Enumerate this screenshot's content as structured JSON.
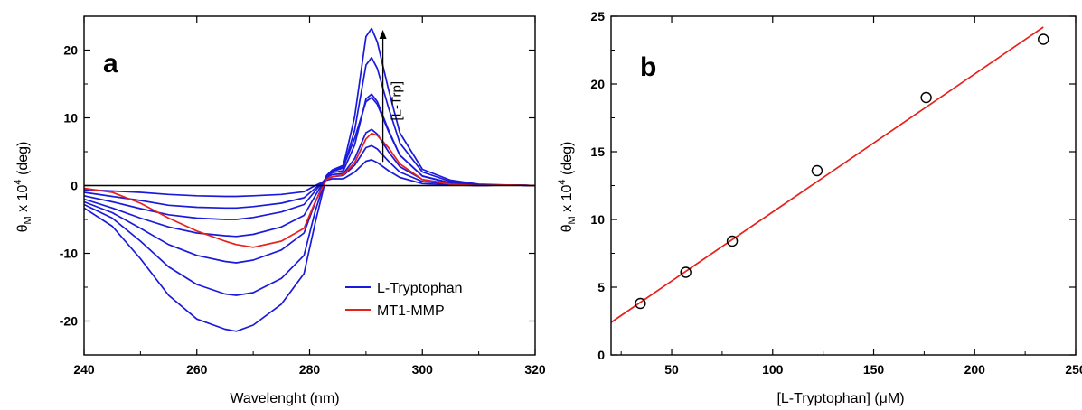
{
  "chart_data": [
    {
      "panel": "a",
      "type": "line",
      "xlabel": "Wavelenght (nm)",
      "ylabel": {
        "symbol": "θ",
        "sub": "M",
        "mid": " x 10",
        "sup": "4",
        "unit": " (deg)"
      },
      "xlim": [
        240,
        320
      ],
      "ylim": [
        -25,
        25
      ],
      "xticks": [
        240,
        260,
        280,
        300,
        320
      ],
      "yticks": [
        -20,
        -10,
        0,
        10,
        20
      ],
      "zero_line": true,
      "annotation": {
        "text": "[L-Trp]",
        "arrow": "up",
        "x": 293,
        "y_from": 3.5,
        "y_to": 23
      },
      "legend": {
        "placement": "bottom-right",
        "entries": [
          {
            "label": "L-Tryptophan",
            "color": "#1a1adb"
          },
          {
            "label": "MT1-MMP",
            "color": "#e8201a"
          }
        ]
      },
      "x": [
        240,
        245,
        250,
        255,
        260,
        265,
        267,
        270,
        275,
        279,
        281,
        283,
        284,
        286,
        288,
        290,
        291,
        292,
        294,
        296,
        300,
        305,
        310,
        315,
        320
      ],
      "series": [
        {
          "color": "#1a1adb",
          "values": [
            -0.6,
            -0.8,
            -1.0,
            -1.3,
            -1.5,
            -1.6,
            -1.6,
            -1.5,
            -1.3,
            -0.9,
            0.0,
            0.8,
            1.0,
            1.0,
            2.0,
            3.6,
            3.8,
            3.4,
            2.2,
            1.2,
            0.3,
            0.1,
            0.0,
            0.1,
            0.0
          ]
        },
        {
          "color": "#1a1adb",
          "values": [
            -1.0,
            -1.6,
            -2.2,
            -2.9,
            -3.2,
            -3.3,
            -3.3,
            -3.1,
            -2.6,
            -1.8,
            -0.4,
            1.0,
            1.3,
            1.5,
            3.0,
            5.6,
            5.9,
            5.4,
            3.6,
            2.0,
            0.6,
            0.2,
            0.0,
            0.1,
            0.0
          ]
        },
        {
          "color": "#1a1adb",
          "values": [
            -1.5,
            -2.4,
            -3.4,
            -4.3,
            -4.8,
            -5.0,
            -5.0,
            -4.7,
            -3.9,
            -2.8,
            -0.8,
            1.2,
            1.6,
            1.8,
            4.0,
            7.8,
            8.3,
            7.6,
            5.0,
            2.8,
            0.9,
            0.3,
            0.0,
            0.1,
            0.0
          ]
        },
        {
          "color": "#1a1adb",
          "values": [
            -2.0,
            -3.3,
            -4.8,
            -6.1,
            -7.0,
            -7.4,
            -7.5,
            -7.2,
            -6.1,
            -4.4,
            -1.5,
            1.3,
            1.9,
            2.2,
            6.0,
            12.8,
            13.5,
            12.4,
            8.2,
            4.5,
            1.4,
            0.4,
            0.1,
            0.1,
            0.0
          ]
        },
        {
          "color": "#1a1adb",
          "values": [
            -2.4,
            -4.0,
            -6.3,
            -8.7,
            -10.3,
            -11.2,
            -11.4,
            -11.0,
            -9.5,
            -7.0,
            -2.5,
            1.4,
            2.1,
            2.6,
            8.2,
            17.8,
            18.9,
            17.3,
            11.5,
            6.3,
            2.0,
            0.6,
            0.1,
            0.1,
            0.0
          ]
        },
        {
          "color": "#1a1adb",
          "values": [
            -2.8,
            -4.8,
            -8.2,
            -12.0,
            -14.6,
            -16.0,
            -16.2,
            -15.8,
            -13.7,
            -10.3,
            -3.8,
            1.5,
            2.3,
            3.0,
            10.2,
            22.0,
            23.2,
            21.2,
            14.2,
            7.8,
            2.4,
            0.8,
            0.2,
            0.1,
            0.0
          ]
        },
        {
          "color": "#1a1adb",
          "values": [
            -3.3,
            -6.0,
            -10.8,
            -16.2,
            -19.7,
            -21.2,
            -21.5,
            -20.6,
            -17.5,
            -13.0,
            -5.5,
            1.4,
            2.2,
            2.8,
            7.0,
            12.4,
            13.0,
            12.0,
            8.0,
            4.5,
            1.4,
            0.4,
            0.1,
            0.1,
            0.0
          ]
        },
        {
          "color": "#e8201a",
          "values": [
            -0.4,
            -1.0,
            -2.6,
            -4.8,
            -6.7,
            -8.2,
            -8.7,
            -9.1,
            -8.2,
            -6.3,
            -2.4,
            0.9,
            1.3,
            1.6,
            3.4,
            6.9,
            7.7,
            7.4,
            5.6,
            3.2,
            0.9,
            0.2,
            0.0,
            0.1,
            0.0
          ]
        }
      ]
    },
    {
      "panel": "b",
      "type": "scatter",
      "xlabel": {
        "pre": "[L-Tryptophan] (",
        "mu": "μ",
        "post": "M)"
      },
      "ylabel": {
        "symbol": "θ",
        "sub": "M",
        "mid": " x 10",
        "sup": "4",
        "unit": " (deg)"
      },
      "xlim": [
        20,
        250
      ],
      "ylim": [
        0,
        25
      ],
      "xticks": [
        50,
        100,
        150,
        200,
        250
      ],
      "yticks": [
        0,
        5,
        10,
        15,
        20,
        25
      ],
      "points": {
        "x": [
          34.5,
          57,
          80,
          122,
          176,
          234
        ],
        "y": [
          3.8,
          6.1,
          8.4,
          13.6,
          19.0,
          23.3
        ]
      },
      "fit": {
        "x": [
          20,
          234
        ],
        "y": [
          2.4,
          24.2
        ],
        "color": "#e8201a"
      }
    }
  ]
}
